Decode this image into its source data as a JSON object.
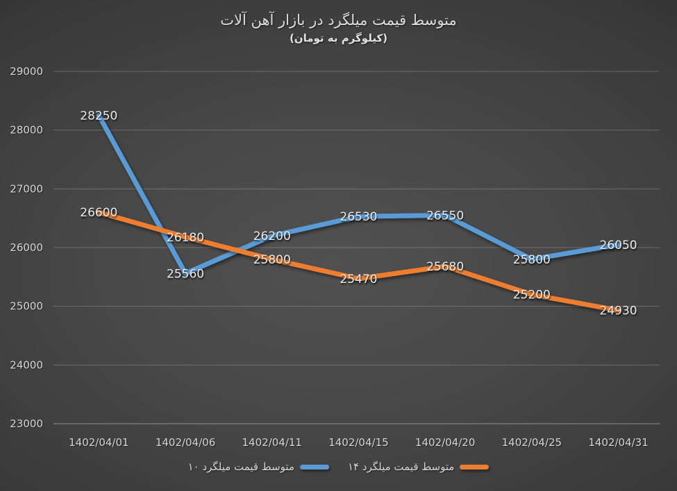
{
  "chart_data": {
    "type": "line",
    "title": "متوسط قیمت میلگرد در بازار آهن آلات",
    "subtitle": "(کیلوگرم به تومان)",
    "categories": [
      "1402/04/01",
      "1402/04/06",
      "1402/04/11",
      "1402/04/15",
      "1402/04/20",
      "1402/04/25",
      "1402/04/31"
    ],
    "series": [
      {
        "name": "متوسط قیمت میلگرد ۱۰",
        "color": "#5B9BD5",
        "values": [
          28250,
          25560,
          26200,
          26530,
          26550,
          25800,
          26050
        ]
      },
      {
        "name": "متوسط قیمت میلگرد ۱۴",
        "color": "#ED7D31",
        "values": [
          26600,
          26180,
          25800,
          25470,
          25680,
          25200,
          24930
        ]
      }
    ],
    "ylim": [
      23000,
      29000
    ],
    "yticks": [
      29000,
      28000,
      27000,
      26000,
      25000,
      24000,
      23000
    ],
    "grid": true,
    "legend_position": "bottom",
    "data_labels": "center",
    "background": "dark-radial-gradient",
    "text_color": "#d9d9d9"
  }
}
